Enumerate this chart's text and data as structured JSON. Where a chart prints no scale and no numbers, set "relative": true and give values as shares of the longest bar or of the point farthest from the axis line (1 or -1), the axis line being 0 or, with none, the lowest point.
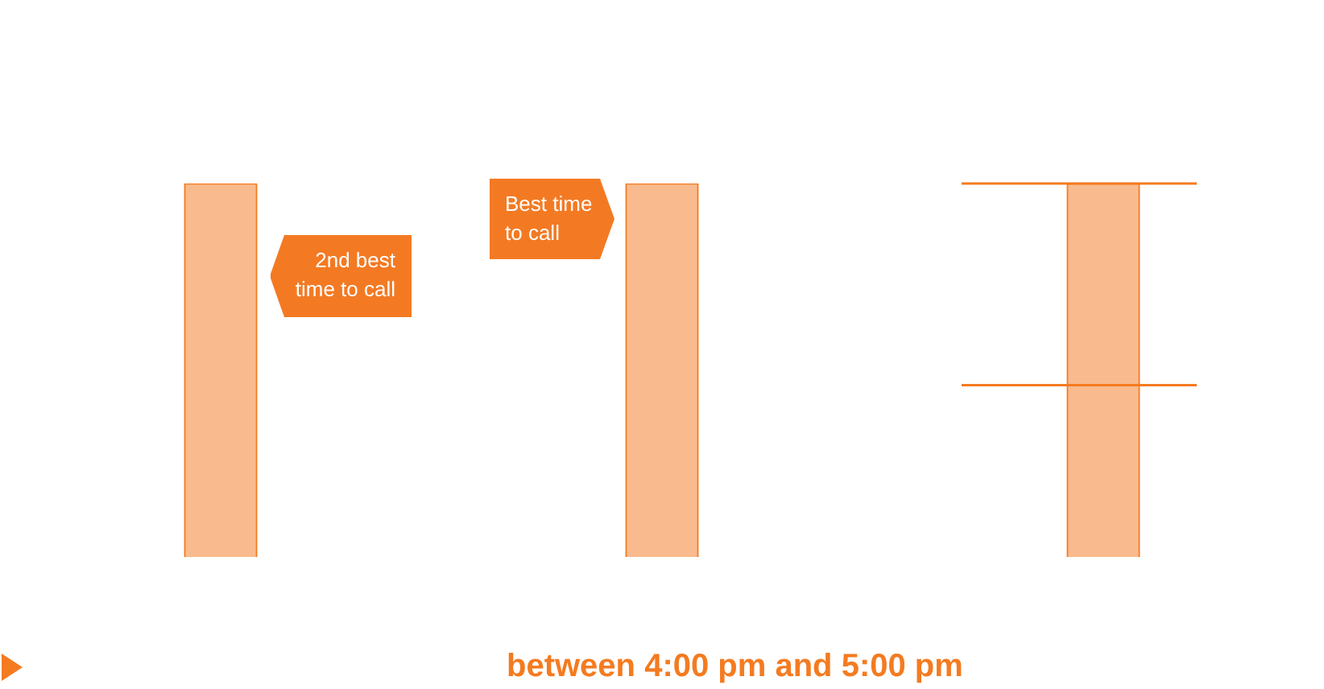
{
  "chart_data": {
    "type": "bar",
    "relative": true,
    "categories": [
      null,
      null,
      null
    ],
    "values": [
      1,
      1,
      1
    ],
    "color": "#f9bb8e",
    "ref_lines": [
      {
        "axis": "y",
        "value": 1,
        "color": "#f47b20"
      },
      {
        "axis": "y",
        "value": 0.46,
        "color": "#f47b20"
      }
    ],
    "annotations": [
      "2nd best time to call",
      "Best time to call",
      "between 4:00 pm and 5:00 pm"
    ],
    "legend": false
  }
}
